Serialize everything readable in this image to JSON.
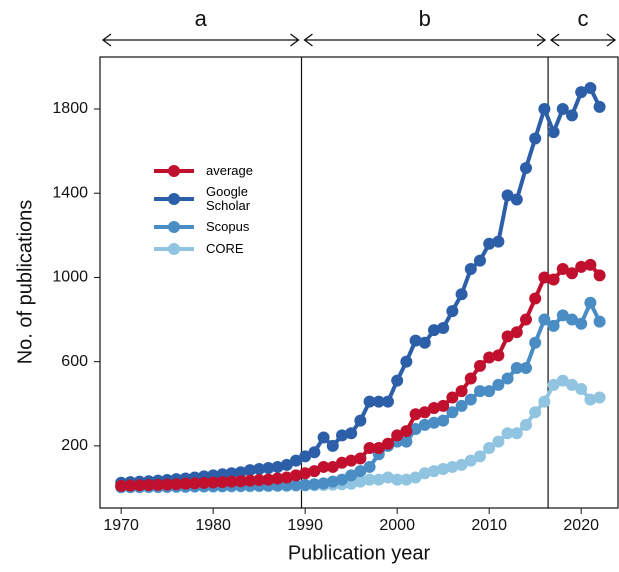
{
  "chart_data": {
    "type": "line",
    "x_label": "Publication year",
    "y_label": "No. of publications",
    "x": [
      1970,
      1971,
      1972,
      1973,
      1974,
      1975,
      1976,
      1977,
      1978,
      1979,
      1980,
      1981,
      1982,
      1983,
      1984,
      1985,
      1986,
      1987,
      1988,
      1989,
      1990,
      1991,
      1992,
      1993,
      1994,
      1995,
      1996,
      1997,
      1998,
      1999,
      2000,
      2001,
      2002,
      2003,
      2004,
      2005,
      2006,
      2007,
      2008,
      2009,
      2010,
      2011,
      2012,
      2013,
      2014,
      2015,
      2016,
      2017,
      2018,
      2019,
      2020,
      2021,
      2022
    ],
    "series": [
      {
        "name": "average",
        "color": "#c0102e",
        "values": [
          10,
          12,
          13,
          14,
          15,
          16,
          18,
          20,
          22,
          24,
          26,
          28,
          30,
          32,
          35,
          38,
          40,
          45,
          50,
          60,
          70,
          80,
          100,
          100,
          120,
          130,
          140,
          190,
          190,
          210,
          250,
          270,
          350,
          360,
          380,
          390,
          430,
          460,
          520,
          580,
          620,
          630,
          720,
          740,
          800,
          900,
          1000,
          990,
          1040,
          1020,
          1050,
          1060,
          1010
        ]
      },
      {
        "name": "Google Scholar",
        "color": "#2d5fa8",
        "values": [
          25,
          28,
          30,
          32,
          35,
          38,
          42,
          45,
          50,
          55,
          60,
          65,
          70,
          75,
          85,
          90,
          95,
          100,
          110,
          130,
          150,
          170,
          240,
          200,
          250,
          260,
          320,
          410,
          410,
          410,
          510,
          600,
          700,
          690,
          750,
          760,
          840,
          920,
          1040,
          1080,
          1160,
          1170,
          1390,
          1370,
          1520,
          1660,
          1800,
          1690,
          1800,
          1770,
          1880,
          1900,
          1810
        ]
      },
      {
        "name": "Scopus",
        "color": "#4a8cc4",
        "values": [
          5,
          5,
          5,
          6,
          6,
          6,
          7,
          7,
          8,
          8,
          9,
          9,
          10,
          10,
          11,
          11,
          12,
          12,
          13,
          14,
          15,
          18,
          22,
          30,
          40,
          60,
          80,
          100,
          160,
          200,
          220,
          220,
          280,
          300,
          310,
          320,
          360,
          390,
          420,
          460,
          460,
          490,
          520,
          570,
          570,
          690,
          800,
          770,
          820,
          800,
          780,
          880,
          790
        ]
      },
      {
        "name": "CORE",
        "color": "#90c4e0",
        "values": [
          3,
          3,
          4,
          4,
          4,
          5,
          5,
          5,
          6,
          6,
          6,
          7,
          7,
          8,
          8,
          9,
          9,
          10,
          10,
          11,
          12,
          13,
          14,
          16,
          18,
          20,
          30,
          40,
          40,
          50,
          40,
          40,
          50,
          70,
          80,
          90,
          100,
          110,
          130,
          150,
          190,
          220,
          260,
          260,
          300,
          360,
          410,
          490,
          510,
          490,
          470,
          420,
          430
        ]
      }
    ],
    "xlim": [
      1967.7,
      2024
    ],
    "ylim": [
      -95,
      2047
    ],
    "xticks": [
      1970,
      1980,
      1990,
      2000,
      2010,
      2020
    ],
    "yticks": [
      200,
      600,
      1000,
      1400,
      1800
    ],
    "vlines": [
      1989.6,
      2016.4
    ],
    "regions": [
      {
        "label": "a",
        "start": 1967.7,
        "end": 1989.6
      },
      {
        "label": "b",
        "start": 1989.6,
        "end": 2016.4
      },
      {
        "label": "c",
        "start": 2016.4,
        "end": 2024
      }
    ]
  }
}
